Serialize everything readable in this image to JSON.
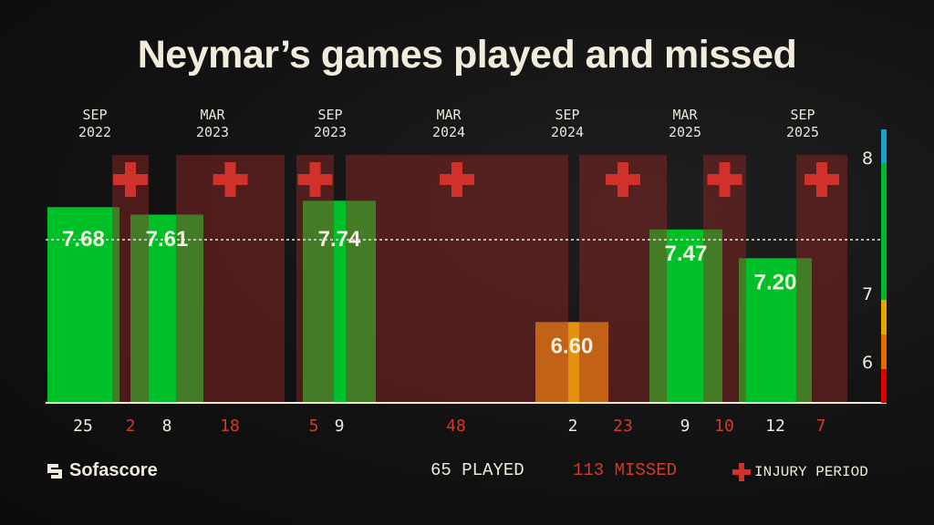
{
  "chart_data": {
    "type": "bar",
    "title": "Neymar’s games played and missed",
    "x_tick_labels": [
      {
        "month": "SEP",
        "year": "2022"
      },
      {
        "month": "MAR",
        "year": "2023"
      },
      {
        "month": "SEP",
        "year": "2023"
      },
      {
        "month": "MAR",
        "year": "2024"
      },
      {
        "month": "SEP",
        "year": "2024"
      },
      {
        "month": "MAR",
        "year": "2025"
      },
      {
        "month": "SEP",
        "year": "2025"
      }
    ],
    "played_periods": [
      {
        "games": "25",
        "rating": 7.68,
        "rating_label": "7.68"
      },
      {
        "games": "8",
        "rating": 7.61,
        "rating_label": "7.61"
      },
      {
        "games": "9",
        "rating": 7.74,
        "rating_label": "7.74"
      },
      {
        "games": "2",
        "rating": 6.6,
        "rating_label": "6.60"
      },
      {
        "games": "9",
        "rating": 7.47,
        "rating_label": "7.47"
      },
      {
        "games": "12",
        "rating": 7.2,
        "rating_label": "7.20"
      }
    ],
    "injury_periods": [
      {
        "missed": "2"
      },
      {
        "missed": "18"
      },
      {
        "missed": "5"
      },
      {
        "missed": "48"
      },
      {
        "missed": "23"
      },
      {
        "missed": "10"
      },
      {
        "missed": "7"
      }
    ],
    "rating_scale": {
      "tick_labels": [
        "8",
        "7",
        "6"
      ],
      "ticks": [
        8,
        7,
        6
      ]
    },
    "reference_line_style": "dashed",
    "colors": {
      "rating_high": "#00c02a",
      "rating_mid": "#e4920e",
      "injury": "#4a1a1a",
      "missed_text": "#d33a2c",
      "cross": "#d0312a",
      "scale_blue": "#1aa3c8",
      "scale_green": "#00b82a",
      "scale_yellow": "#e0a800",
      "scale_orange": "#e56b00",
      "scale_red": "#e00000"
    }
  },
  "footer": {
    "brand": "Sofascore",
    "played_total": "65 PLAYED",
    "missed_total": "113 MISSED",
    "legend_injury": "INJURY PERIOD"
  }
}
